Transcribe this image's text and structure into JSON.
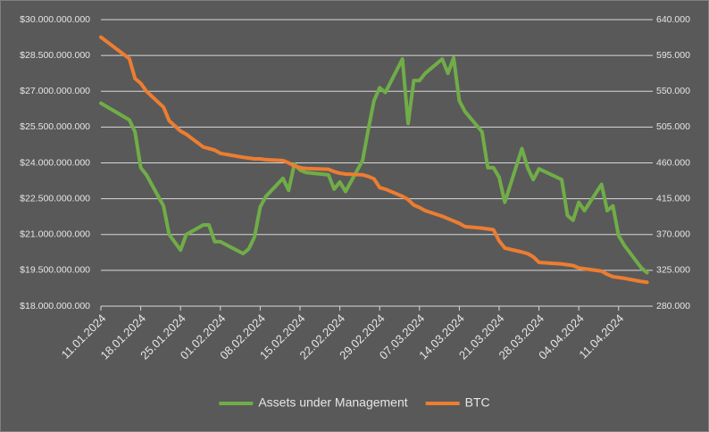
{
  "chart_data": {
    "type": "line",
    "x": [
      "2024-01-11",
      "2024-01-16",
      "2024-01-17",
      "2024-01-18",
      "2024-01-19",
      "2024-01-22",
      "2024-01-23",
      "2024-01-25",
      "2024-01-26",
      "2024-01-29",
      "2024-01-30",
      "2024-01-31",
      "2024-02-01",
      "2024-02-05",
      "2024-02-06",
      "2024-02-07",
      "2024-02-08",
      "2024-02-09",
      "2024-02-12",
      "2024-02-13",
      "2024-02-14",
      "2024-02-15",
      "2024-02-16",
      "2024-02-20",
      "2024-02-21",
      "2024-02-22",
      "2024-02-23",
      "2024-02-26",
      "2024-02-27",
      "2024-02-28",
      "2024-02-29",
      "2024-03-01",
      "2024-03-04",
      "2024-03-05",
      "2024-03-06",
      "2024-03-07",
      "2024-03-08",
      "2024-03-11",
      "2024-03-12",
      "2024-03-13",
      "2024-03-14",
      "2024-03-15",
      "2024-03-18",
      "2024-03-19",
      "2024-03-20",
      "2024-03-21",
      "2024-03-22",
      "2024-03-25",
      "2024-03-26",
      "2024-03-27",
      "2024-03-28",
      "2024-04-01",
      "2024-04-02",
      "2024-04-03",
      "2024-04-04",
      "2024-04-05",
      "2024-04-08",
      "2024-04-09",
      "2024-04-10",
      "2024-04-11",
      "2024-04-12",
      "2024-04-15",
      "2024-04-16"
    ],
    "series": [
      {
        "name": "Assets under Management",
        "color": "#70ad47",
        "values": [
          26500000000,
          25800000000,
          25300000000,
          23800000000,
          23500000000,
          22200000000,
          21000000000,
          20350000000,
          21000000000,
          21400000000,
          21400000000,
          20700000000,
          20700000000,
          20200000000,
          20400000000,
          20900000000,
          22150000000,
          22600000000,
          23350000000,
          22850000000,
          23950000000,
          23700000000,
          23600000000,
          23500000000,
          22900000000,
          23200000000,
          22800000000,
          24100000000,
          25400000000,
          26600000000,
          27150000000,
          26950000000,
          28350000000,
          25650000000,
          27450000000,
          27450000000,
          27750000000,
          28350000000,
          27750000000,
          28400000000,
          26600000000,
          26150000000,
          25300000000,
          23800000000,
          23800000000,
          23400000000,
          22350000000,
          24600000000,
          23800000000,
          23300000000,
          23750000000,
          23300000000,
          21800000000,
          21600000000,
          22350000000,
          22000000000,
          23100000000,
          22000000000,
          22200000000,
          20950000000,
          20550000000,
          19600000000,
          19400000000
        ]
      },
      {
        "name": "BTC",
        "color": "#ed7d31",
        "axis": "y2",
        "values": [
          618000,
          591000,
          566000,
          560000,
          550000,
          530000,
          513000,
          500000,
          496000,
          480000,
          478000,
          476000,
          472000,
          467000,
          466000,
          465000,
          465000,
          464000,
          463000,
          460000,
          456000,
          454000,
          453000,
          452000,
          449000,
          447000,
          446000,
          445000,
          443000,
          440000,
          429000,
          427000,
          418000,
          414000,
          407000,
          404000,
          400000,
          393000,
          390000,
          387000,
          384000,
          380000,
          378000,
          377000,
          376000,
          362000,
          353000,
          348000,
          346000,
          342000,
          335000,
          333000,
          332000,
          331000,
          328000,
          327000,
          324000,
          320000,
          317000,
          316000,
          315000,
          311000,
          310000
        ]
      }
    ],
    "xlim": [
      "2024-01-11",
      "2024-04-17"
    ],
    "xticks": [
      {
        "value": "2024-01-11",
        "label": "11.01.2024"
      },
      {
        "value": "2024-01-18",
        "label": "18.01.2024"
      },
      {
        "value": "2024-01-25",
        "label": "25.01.2024"
      },
      {
        "value": "2024-02-01",
        "label": "01.02.2024"
      },
      {
        "value": "2024-02-08",
        "label": "08.02.2024"
      },
      {
        "value": "2024-02-15",
        "label": "15.02.2024"
      },
      {
        "value": "2024-02-22",
        "label": "22.02.2024"
      },
      {
        "value": "2024-02-29",
        "label": "29.02.2024"
      },
      {
        "value": "2024-03-07",
        "label": "07.03.2024"
      },
      {
        "value": "2024-03-14",
        "label": "14.03.2024"
      },
      {
        "value": "2024-03-21",
        "label": "21.03.2024"
      },
      {
        "value": "2024-03-28",
        "label": "28.03.2024"
      },
      {
        "value": "2024-04-04",
        "label": "04.04.2024"
      },
      {
        "value": "2024-04-11",
        "label": "11.04.2024"
      }
    ],
    "ylim": [
      18000000000,
      30000000000
    ],
    "yticks": [
      {
        "value": 18000000000,
        "label": "$18.000.000.000"
      },
      {
        "value": 19500000000,
        "label": "$19.500.000.000"
      },
      {
        "value": 21000000000,
        "label": "$21.000.000.000"
      },
      {
        "value": 22500000000,
        "label": "$22.500.000.000"
      },
      {
        "value": 24000000000,
        "label": "$24.000.000.000"
      },
      {
        "value": 25500000000,
        "label": "$25.500.000.000"
      },
      {
        "value": 27000000000,
        "label": "$27.000.000.000"
      },
      {
        "value": 28500000000,
        "label": "$28.500.000.000"
      },
      {
        "value": 30000000000,
        "label": "$30.000.000.000"
      }
    ],
    "y2lim": [
      280000,
      640000
    ],
    "y2ticks": [
      {
        "value": 280000,
        "label": "280.000"
      },
      {
        "value": 325000,
        "label": "325.000"
      },
      {
        "value": 370000,
        "label": "370.000"
      },
      {
        "value": 415000,
        "label": "415.000"
      },
      {
        "value": 460000,
        "label": "460.000"
      },
      {
        "value": 505000,
        "label": "505.000"
      },
      {
        "value": 550000,
        "label": "550.000"
      },
      {
        "value": 595000,
        "label": "595.000"
      },
      {
        "value": 640000,
        "label": "640.000"
      }
    ],
    "grid": true,
    "legend": "bottom"
  }
}
